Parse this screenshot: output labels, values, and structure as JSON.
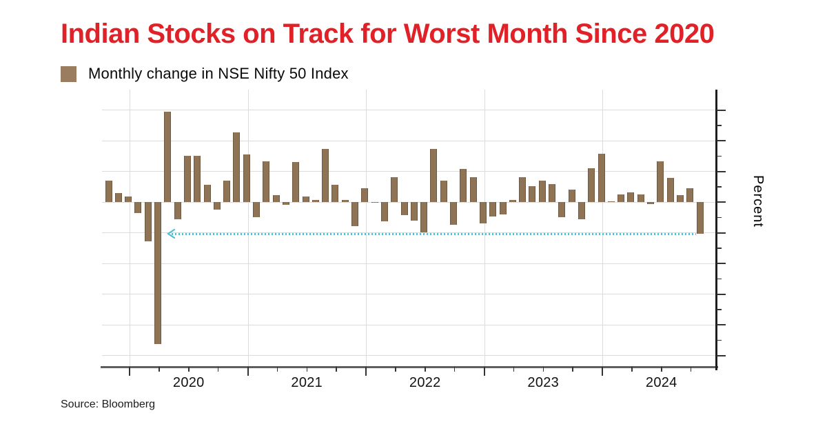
{
  "title": "Indian Stocks on Track for Worst Month Since 2020",
  "legend": {
    "label": "Monthly change in NSE Nifty 50 Index",
    "swatch_color": "#9a7c5e"
  },
  "source": "Source: Bloomberg",
  "colors": {
    "title_red": "#e02127",
    "bar_brown": "#8f7355",
    "arrow_cyan": "#53bdd2",
    "grid_gray": "#dcdcdc",
    "axis_dark": "#1d1d1d"
  },
  "chart_data": {
    "type": "bar",
    "title": "Monthly change in NSE Nifty 50 Index",
    "xlabel": "",
    "ylabel": "Percent",
    "x_tick_labels": [
      "2020",
      "2021",
      "2022",
      "2023",
      "2024"
    ],
    "y_tick_labels_visible": false,
    "y_gridline_step_pct": 5,
    "ylim": [
      -26.9,
      18.3
    ],
    "grid": true,
    "legend_position": "top-left",
    "months": [
      "2019-10",
      "2019-11",
      "2019-12",
      "2020-01",
      "2020-02",
      "2020-03",
      "2020-04",
      "2020-05",
      "2020-06",
      "2020-07",
      "2020-08",
      "2020-09",
      "2020-10",
      "2020-11",
      "2020-12",
      "2021-01",
      "2021-02",
      "2021-03",
      "2021-04",
      "2021-05",
      "2021-06",
      "2021-07",
      "2021-08",
      "2021-09",
      "2021-10",
      "2021-11",
      "2021-12",
      "2022-01",
      "2022-02",
      "2022-03",
      "2022-04",
      "2022-05",
      "2022-06",
      "2022-07",
      "2022-08",
      "2022-09",
      "2022-10",
      "2022-11",
      "2022-12",
      "2023-01",
      "2023-02",
      "2023-03",
      "2023-04",
      "2023-05",
      "2023-06",
      "2023-07",
      "2023-08",
      "2023-09",
      "2023-10",
      "2023-11",
      "2023-12",
      "2024-01",
      "2024-02",
      "2024-03",
      "2024-04",
      "2024-05",
      "2024-06",
      "2024-07",
      "2024-08",
      "2024-09",
      "2024-10"
    ],
    "values": [
      3.5,
      1.5,
      0.9,
      -1.8,
      -6.4,
      -23.2,
      14.7,
      -2.8,
      7.5,
      7.5,
      2.8,
      -1.2,
      3.5,
      11.4,
      7.8,
      -2.5,
      6.6,
      1.1,
      -0.4,
      6.5,
      0.9,
      0.3,
      8.7,
      2.8,
      0.3,
      -3.9,
      2.2,
      -0.1,
      -3.1,
      4.0,
      -2.1,
      -3.0,
      -4.9,
      8.7,
      3.5,
      -3.7,
      5.4,
      4.1,
      -3.5,
      -2.4,
      -2.0,
      0.3,
      4.1,
      2.6,
      3.5,
      2.9,
      -2.5,
      2.0,
      -2.8,
      5.5,
      7.9,
      0.1,
      1.2,
      1.6,
      1.2,
      -0.3,
      6.6,
      3.9,
      1.1,
      2.3,
      -5.2
    ],
    "reference_line": {
      "value": -5.2,
      "style": "dotted",
      "arrow_direction": "left",
      "color": "#53bdd2",
      "from_month": "2020-04",
      "to_month": "2024-10"
    }
  }
}
